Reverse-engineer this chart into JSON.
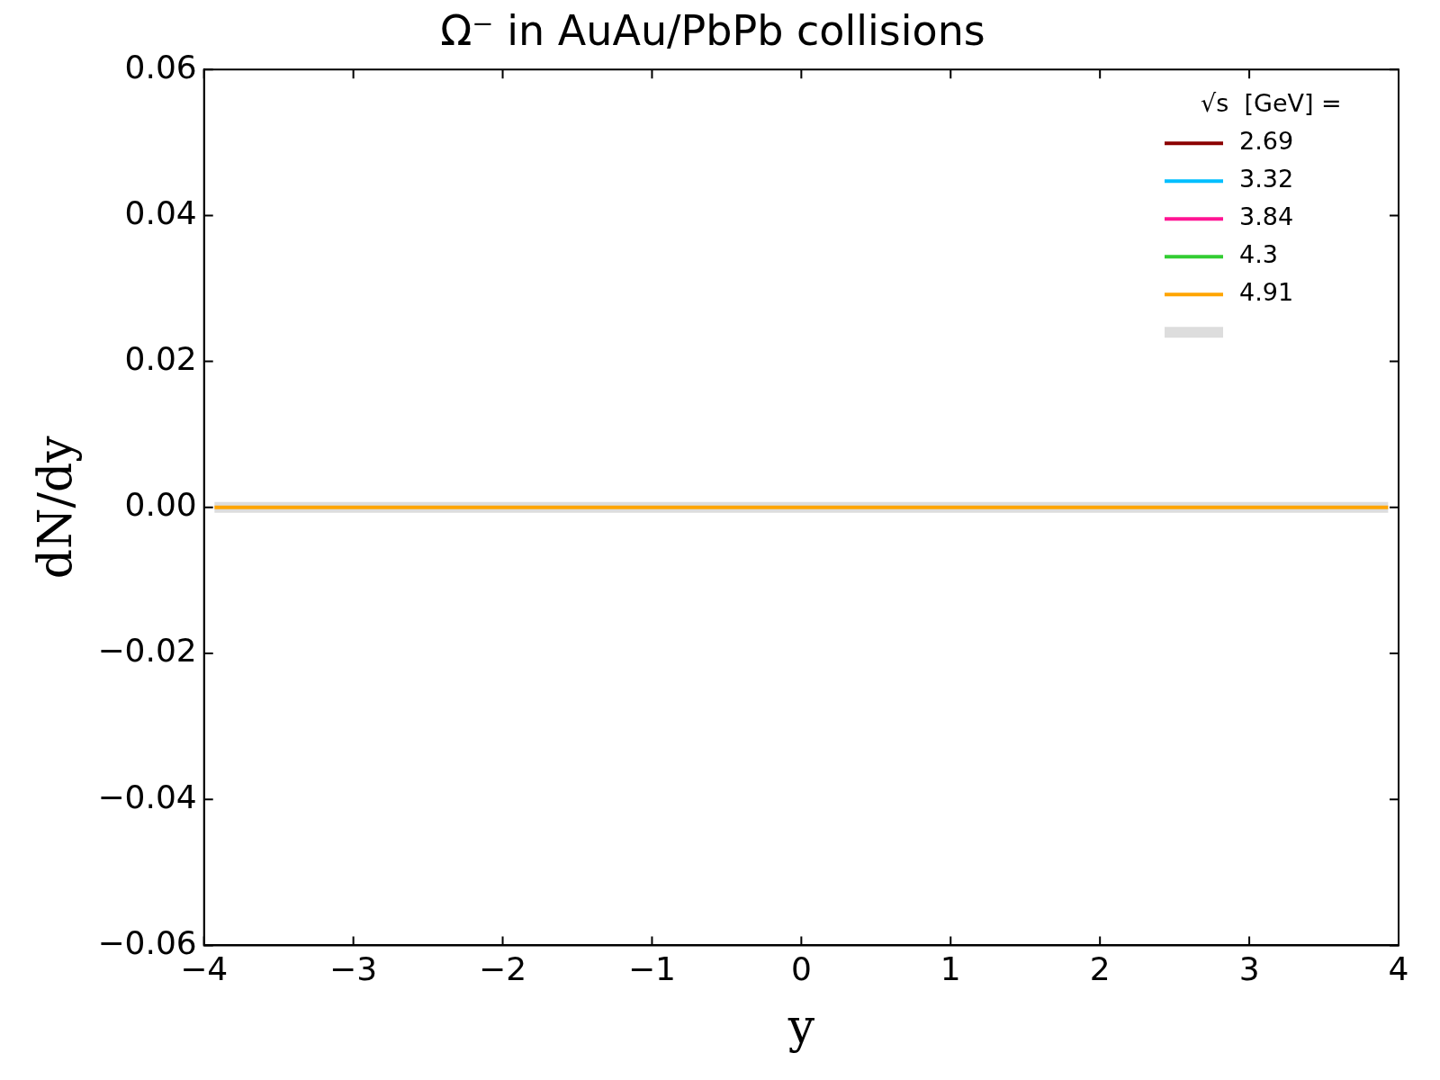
{
  "chart_data": {
    "type": "line",
    "title": "Ω⁻ in AuAu/PbPb collisions",
    "xlabel": "y",
    "ylabel": "dN/dy",
    "legend_title": "√s  [GeV] =",
    "x": [
      -3.93,
      3.93
    ],
    "series": [
      {
        "color": "#dddddd",
        "values": [
          0,
          0
        ]
      },
      {
        "name": "2.69",
        "color": "#8b0000",
        "values": [
          null,
          null
        ]
      },
      {
        "name": "3.32",
        "color": "#00bfff",
        "values": [
          null,
          null
        ]
      },
      {
        "name": "3.84",
        "color": "#ff1493",
        "values": [
          null,
          null
        ]
      },
      {
        "name": "4.3",
        "color": "#32cd32",
        "values": [
          null,
          null
        ]
      },
      {
        "name": "4.91",
        "color": "#ffa500",
        "values": [
          0,
          0
        ]
      }
    ],
    "xlim": [
      -4,
      4
    ],
    "xticks": [
      {
        "value": -4,
        "label": "−4"
      },
      {
        "value": -3,
        "label": "−3"
      },
      {
        "value": -2,
        "label": "−2"
      },
      {
        "value": -1,
        "label": "−1"
      },
      0,
      1,
      2,
      3,
      4
    ],
    "ylim": [
      -0.06,
      0.06
    ],
    "yticks": [
      {
        "value": -0.06,
        "label": "−0.06"
      },
      {
        "value": -0.04,
        "label": "−0.04"
      },
      {
        "value": -0.02,
        "label": "−0.02"
      },
      {
        "value": 0,
        "label": "0.00"
      },
      {
        "value": 0.02,
        "label": "0.02"
      },
      {
        "value": 0.04,
        "label": "0.04"
      },
      {
        "value": 0.06,
        "label": "0.06"
      }
    ],
    "grid": false,
    "legend": "top right",
    "line_style": "solid",
    "marker": "none"
  }
}
